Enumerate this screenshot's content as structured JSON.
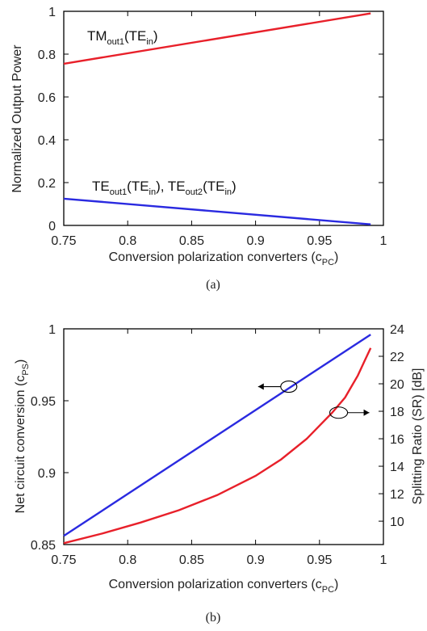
{
  "chart_data": [
    {
      "type": "line",
      "caption": "(a)",
      "xlabel": {
        "main": "Conversion polarization converters (c",
        "sub": "PC",
        "close": ")"
      },
      "ylabel": "Normalized Output Power",
      "xlim": [
        0.75,
        1
      ],
      "ylim": [
        0,
        1
      ],
      "xticks": [
        "0.75",
        "0.8",
        "0.85",
        "0.9",
        "0.95",
        "1"
      ],
      "yticks": [
        "0",
        "0.2",
        "0.4",
        "0.6",
        "0.8",
        "1"
      ],
      "series": [
        {
          "color": "#e8202a",
          "x": [
            0.75,
            0.99
          ],
          "y": [
            0.755,
            0.99
          ],
          "label_parts": [
            {
              "t": "TM"
            },
            {
              "t": "out1",
              "sub": true
            },
            {
              "t": "(TE"
            },
            {
              "t": "in",
              "sub": true
            },
            {
              "t": ")"
            }
          ]
        },
        {
          "color": "#2a2ae0",
          "x": [
            0.75,
            0.99
          ],
          "y": [
            0.125,
            0.005
          ],
          "label_parts": [
            {
              "t": "TE"
            },
            {
              "t": "out1",
              "sub": true
            },
            {
              "t": "(TE"
            },
            {
              "t": "in",
              "sub": true
            },
            {
              "t": "), TE"
            },
            {
              "t": "out2",
              "sub": true
            },
            {
              "t": "(TE"
            },
            {
              "t": "in",
              "sub": true
            },
            {
              "t": ")"
            }
          ]
        }
      ]
    },
    {
      "type": "line",
      "caption": "(b)",
      "xlabel": {
        "main": "Conversion polarization converters (c",
        "sub": "PC",
        "close": ")"
      },
      "ylabel": {
        "main": "Net circuit conversion (c",
        "sub": "PS",
        "close": ")"
      },
      "y2label": "Splitting Ratio (SR) [dB]",
      "xlim": [
        0.75,
        1
      ],
      "ylim": [
        0.85,
        1
      ],
      "y2lim": [
        8.3,
        24
      ],
      "xticks": [
        "0.75",
        "0.8",
        "0.85",
        "0.9",
        "0.95",
        "1"
      ],
      "yticks": [
        "0.85",
        "0.9",
        "0.95",
        "1"
      ],
      "y2ticks": [
        "10",
        "12",
        "14",
        "16",
        "18",
        "20",
        "22",
        "24"
      ],
      "series": [
        {
          "color": "#2a2ae0",
          "axis": "left",
          "x": [
            0.75,
            0.99
          ],
          "y": [
            0.856,
            0.996
          ]
        },
        {
          "color": "#e8202a",
          "axis": "right",
          "x": [
            0.75,
            0.78,
            0.81,
            0.84,
            0.87,
            0.9,
            0.92,
            0.94,
            0.96,
            0.97,
            0.975,
            0.98,
            0.985,
            0.99
          ],
          "y": [
            8.4,
            9.1,
            9.9,
            10.8,
            11.9,
            13.3,
            14.5,
            16.0,
            17.9,
            19.0,
            19.8,
            20.6,
            21.6,
            22.6
          ]
        }
      ]
    }
  ]
}
